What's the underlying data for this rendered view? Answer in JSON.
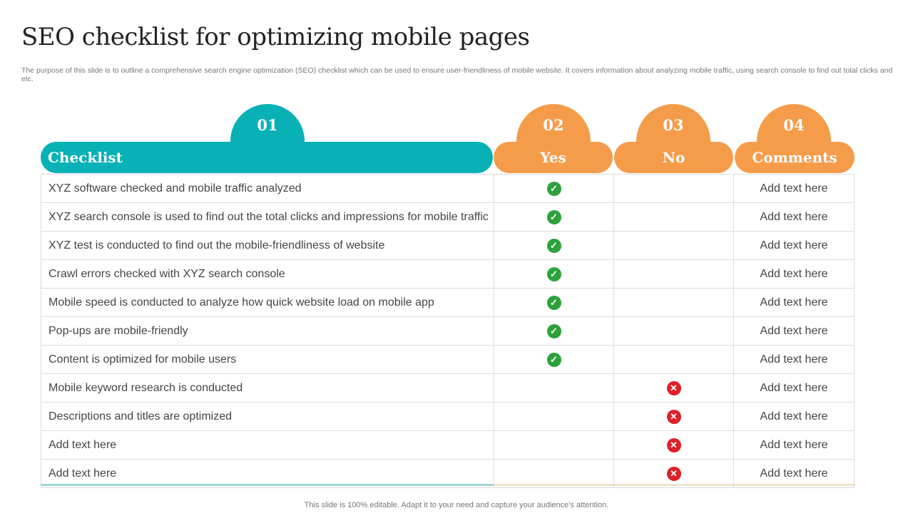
{
  "title": "SEO checklist for optimizing mobile pages",
  "subtitle": "The purpose of this slide is to outline a comprehensive search engine optimization (SEO) checklist which can be used to ensure user-friendliness of mobile website. It covers information about analyzing mobile traffic, using search console to find out total clicks and etc.",
  "columns": [
    {
      "num": "01",
      "label": "Checklist"
    },
    {
      "num": "02",
      "label": "Yes"
    },
    {
      "num": "03",
      "label": "No"
    },
    {
      "num": "04",
      "label": "Comments"
    }
  ],
  "colors": {
    "teal": "#08b1b5",
    "orange": "#f59c4b",
    "check": "#2ca23b",
    "cross": "#e01f26"
  },
  "rows": [
    {
      "item": "XYZ software checked and mobile traffic analyzed",
      "status": "yes",
      "comment": "Add text here"
    },
    {
      "item": "XYZ search console is used to find out the total clicks and impressions for mobile traffic",
      "status": "yes",
      "comment": "Add text here"
    },
    {
      "item": "XYZ test is conducted to find out the mobile-friendliness of website",
      "status": "yes",
      "comment": "Add text here"
    },
    {
      "item": "Crawl errors checked with XYZ search console",
      "status": "yes",
      "comment": "Add text here"
    },
    {
      "item": "Mobile speed is conducted to analyze  how quick website load on mobile app",
      "status": "yes",
      "comment": "Add text here"
    },
    {
      "item": "Pop-ups are mobile-friendly",
      "status": "yes",
      "comment": "Add text here"
    },
    {
      "item": "Content is optimized for mobile users",
      "status": "yes",
      "comment": "Add text here"
    },
    {
      "item": "Mobile keyword research is conducted",
      "status": "no",
      "comment": "Add text here"
    },
    {
      "item": "Descriptions and titles are optimized",
      "status": "no",
      "comment": "Add text here"
    },
    {
      "item": "Add text here",
      "status": "no",
      "comment": "Add text here"
    },
    {
      "item": "Add text here",
      "status": "no",
      "comment": "Add text here"
    }
  ],
  "footer": "This slide is 100% editable. Adapt it to your need and capture your audience’s attention."
}
